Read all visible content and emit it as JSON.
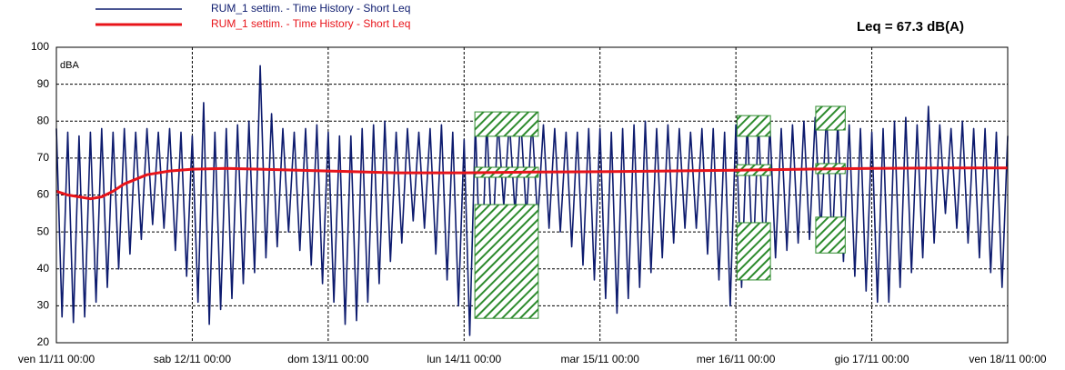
{
  "chart_data": {
    "type": "line",
    "annotation": "Leq = 67.3 dB(A)",
    "ylabel": "dBA",
    "xlim": [
      0,
      168
    ],
    "xticks": [
      {
        "value": 0,
        "label": "ven 11/11 00:00"
      },
      {
        "value": 24,
        "label": "sab 12/11 00:00"
      },
      {
        "value": 48,
        "label": "dom 13/11 00:00"
      },
      {
        "value": 72,
        "label": "lun 14/11 00:00"
      },
      {
        "value": 96,
        "label": "mar 15/11 00:00"
      },
      {
        "value": 120,
        "label": "mer 16/11 00:00"
      },
      {
        "value": 144,
        "label": "gio 17/11 00:00"
      },
      {
        "value": 168,
        "label": "ven 18/11 00:00"
      }
    ],
    "ylim": [
      20,
      100
    ],
    "yticks": [
      20,
      30,
      40,
      50,
      60,
      70,
      80,
      90,
      100
    ],
    "grid": true,
    "legend": "top-left",
    "series": [
      {
        "name": "RUM_1 settim. - Time History - Short Leq",
        "color": "#0d1b6e",
        "x": [
          0,
          1,
          2,
          3,
          4,
          5,
          6,
          7,
          8,
          9,
          10,
          11,
          12,
          13,
          14,
          15,
          16,
          17,
          18,
          19,
          20,
          21,
          22,
          23,
          24,
          25,
          26,
          27,
          28,
          29,
          30,
          31,
          32,
          33,
          34,
          35,
          36,
          37,
          38,
          39,
          40,
          41,
          42,
          43,
          44,
          45,
          46,
          47,
          48,
          49,
          50,
          51,
          52,
          53,
          54,
          55,
          56,
          57,
          58,
          59,
          60,
          61,
          62,
          63,
          64,
          65,
          66,
          67,
          68,
          69,
          70,
          71,
          72,
          73,
          74,
          75,
          76,
          77,
          78,
          79,
          80,
          81,
          82,
          83,
          84,
          85,
          86,
          87,
          88,
          89,
          90,
          91,
          92,
          93,
          94,
          95,
          96,
          97,
          98,
          99,
          100,
          101,
          102,
          103,
          104,
          105,
          106,
          107,
          108,
          109,
          110,
          111,
          112,
          113,
          114,
          115,
          116,
          117,
          118,
          119,
          120,
          121,
          122,
          123,
          124,
          125,
          126,
          127,
          128,
          129,
          130,
          131,
          132,
          133,
          134,
          135,
          136,
          137,
          138,
          139,
          140,
          141,
          142,
          143,
          144,
          145,
          146,
          147,
          148,
          149,
          150,
          151,
          152,
          153,
          154,
          155,
          156,
          157,
          158,
          159,
          160,
          161,
          162,
          163,
          164,
          165,
          166,
          167,
          168
        ],
        "values": [
          78,
          27,
          77,
          25.5,
          76,
          27,
          77,
          31,
          78,
          35,
          77,
          40,
          78,
          44,
          77,
          48,
          78,
          52,
          77,
          51,
          78,
          45,
          77,
          38,
          76,
          31,
          85,
          25,
          77,
          29,
          78,
          32,
          79,
          36,
          80,
          39,
          95,
          43,
          82,
          46,
          78,
          50,
          77,
          45,
          78,
          41,
          79,
          36,
          77,
          31,
          76,
          25,
          76,
          26,
          78,
          31,
          79,
          36,
          80,
          42,
          77,
          47,
          78,
          53,
          77,
          51,
          78,
          44,
          79,
          37,
          77,
          30,
          75,
          22,
          79,
          34,
          80,
          45,
          80,
          57,
          80,
          55,
          81,
          54,
          80,
          53,
          79,
          51,
          78,
          50,
          77,
          46,
          77,
          41,
          78,
          37,
          78,
          32,
          77,
          28,
          78,
          32,
          79,
          35,
          80,
          39,
          78,
          43,
          79,
          47,
          78,
          51,
          77,
          51,
          78,
          44,
          78,
          37,
          77,
          30,
          79,
          35,
          80,
          40,
          80,
          42,
          79,
          43,
          78,
          45,
          79,
          47,
          80,
          48,
          81,
          50,
          82,
          46,
          80,
          42,
          79,
          38,
          78,
          34,
          77,
          31,
          78,
          31,
          80,
          35,
          81,
          39,
          79,
          43,
          84,
          47,
          79,
          55,
          78,
          51,
          80,
          47,
          78,
          43,
          78,
          39,
          77,
          35,
          76
        ]
      },
      {
        "name": "RUM_1 settim. - Time History - Short Leq",
        "color": "#e8141a",
        "x": [
          0,
          2,
          4,
          6,
          8,
          10,
          12,
          16,
          20,
          24,
          30,
          36,
          48,
          60,
          72,
          84,
          96,
          108,
          120,
          132,
          144,
          156,
          168
        ],
        "values": [
          61,
          60,
          59.5,
          59,
          59.5,
          61,
          63,
          65.5,
          66.5,
          67,
          67.2,
          67,
          66.5,
          66,
          66,
          66.2,
          66.3,
          66.5,
          66.7,
          67,
          67.2,
          67.3,
          67.3
        ]
      }
    ],
    "regions": [
      {
        "x0": 73.9,
        "x1": 85.1,
        "y0": 75.9,
        "y1": 82.5
      },
      {
        "x0": 73.9,
        "x1": 85.1,
        "y0": 64.8,
        "y1": 67.5
      },
      {
        "x0": 73.9,
        "x1": 85.1,
        "y0": 26.6,
        "y1": 57.4
      },
      {
        "x0": 120.2,
        "x1": 126.1,
        "y0": 75.9,
        "y1": 81.5
      },
      {
        "x0": 120.2,
        "x1": 126.1,
        "y0": 65.3,
        "y1": 68.2
      },
      {
        "x0": 120.2,
        "x1": 126.1,
        "y0": 37,
        "y1": 52.5
      },
      {
        "x0": 134.1,
        "x1": 139.3,
        "y0": 77.6,
        "y1": 84
      },
      {
        "x0": 134.1,
        "x1": 139.3,
        "y0": 65.8,
        "y1": 68.5
      },
      {
        "x0": 134.1,
        "x1": 139.3,
        "y0": 44.3,
        "y1": 54
      }
    ],
    "region_color": "#2e8b2e"
  }
}
